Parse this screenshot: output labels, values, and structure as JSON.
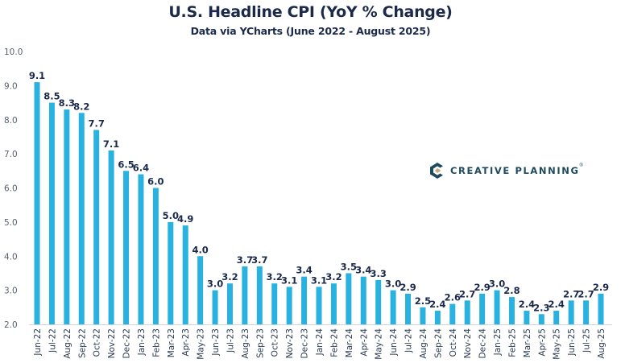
{
  "header": {
    "title": "U.S. Headline CPI (YoY % Change)",
    "subtitle": "Data via YCharts (June 2022 - August 2025)"
  },
  "logo": {
    "text": "CREATIVE PLANNING",
    "mark": "®",
    "icon": "creative-planning-c-icon",
    "colors": {
      "primary": "#1e4a5e",
      "accent": "#c9ab82"
    }
  },
  "colors": {
    "bar": "#29b2e0",
    "title": "#1b2a4a",
    "axis": "#d0d3d8"
  },
  "chart_data": {
    "type": "bar",
    "title": "U.S. Headline CPI (YoY % Change)",
    "subtitle": "Data via YCharts (June 2022 - August 2025)",
    "xlabel": "",
    "ylabel": "",
    "ylim": [
      2.0,
      10.0
    ],
    "yticks": [
      "2.0",
      "3.0",
      "4.0",
      "5.0",
      "6.0",
      "7.0",
      "8.0",
      "9.0",
      "10.0"
    ],
    "grid": false,
    "legend": "none",
    "categories": [
      "Jun-22",
      "Jul-22",
      "Aug-22",
      "Sep-22",
      "Oct-22",
      "Nov-22",
      "Dec-22",
      "Jan-23",
      "Feb-23",
      "Mar-23",
      "Apr-23",
      "May-23",
      "Jun-23",
      "Jul-23",
      "Aug-23",
      "Sep-23",
      "Oct-23",
      "Nov-23",
      "Dec-23",
      "Jan-24",
      "Feb-24",
      "Mar-24",
      "Apr-24",
      "May-24",
      "Jun-24",
      "Jul-24",
      "Aug-24",
      "Sep-24",
      "Oct-24",
      "Nov-24",
      "Dec-24",
      "Jan-25",
      "Feb-25",
      "Mar-25",
      "Apr-25",
      "May-25",
      "Jun-25",
      "Jul-25",
      "Aug-25"
    ],
    "values": [
      9.1,
      8.5,
      8.3,
      8.2,
      7.7,
      7.1,
      6.5,
      6.4,
      6.0,
      5.0,
      4.9,
      4.0,
      3.0,
      3.2,
      3.7,
      3.7,
      3.2,
      3.1,
      3.4,
      3.1,
      3.2,
      3.5,
      3.4,
      3.3,
      3.0,
      2.9,
      2.5,
      2.4,
      2.6,
      2.7,
      2.9,
      3.0,
      2.8,
      2.4,
      2.3,
      2.4,
      2.7,
      2.7,
      2.9
    ]
  }
}
